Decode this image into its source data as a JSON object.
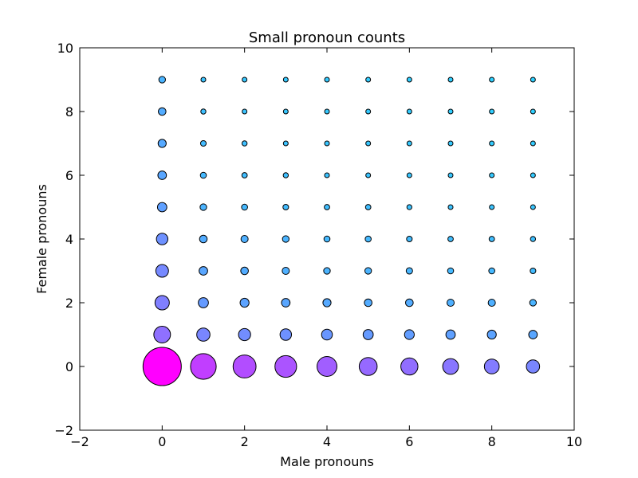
{
  "chart_data": {
    "type": "scatter",
    "title": "Small pronoun counts",
    "xlabel": "Male pronouns",
    "ylabel": "Female pronouns",
    "xlim": [
      -2,
      10
    ],
    "ylim": [
      -2,
      10
    ],
    "xticks": [
      -2,
      0,
      2,
      4,
      6,
      8,
      10
    ],
    "yticks": [
      -2,
      0,
      2,
      4,
      6,
      8,
      10
    ],
    "xtick_labels": [
      "−2",
      "0",
      "2",
      "4",
      "6",
      "8",
      "10"
    ],
    "ytick_labels": [
      "−2",
      "0",
      "2",
      "4",
      "6",
      "8",
      "10"
    ],
    "grid": false,
    "size_encoding": "relative count",
    "color_low": "#00ffff",
    "color_high": "#ff00ff",
    "points": [
      {
        "x": 0,
        "y": 0,
        "v": 1.0
      },
      {
        "x": 1,
        "y": 0,
        "v": 0.45
      },
      {
        "x": 2,
        "y": 0,
        "v": 0.36
      },
      {
        "x": 3,
        "y": 0,
        "v": 0.32
      },
      {
        "x": 4,
        "y": 0,
        "v": 0.27
      },
      {
        "x": 5,
        "y": 0,
        "v": 0.22
      },
      {
        "x": 6,
        "y": 0,
        "v": 0.2
      },
      {
        "x": 7,
        "y": 0,
        "v": 0.17
      },
      {
        "x": 8,
        "y": 0,
        "v": 0.15
      },
      {
        "x": 9,
        "y": 0,
        "v": 0.12
      },
      {
        "x": 0,
        "y": 1,
        "v": 0.19
      },
      {
        "x": 1,
        "y": 1,
        "v": 0.12
      },
      {
        "x": 2,
        "y": 1,
        "v": 0.1
      },
      {
        "x": 3,
        "y": 1,
        "v": 0.09
      },
      {
        "x": 4,
        "y": 1,
        "v": 0.08
      },
      {
        "x": 5,
        "y": 1,
        "v": 0.07
      },
      {
        "x": 6,
        "y": 1,
        "v": 0.065
      },
      {
        "x": 7,
        "y": 1,
        "v": 0.06
      },
      {
        "x": 8,
        "y": 1,
        "v": 0.055
      },
      {
        "x": 9,
        "y": 1,
        "v": 0.05
      },
      {
        "x": 0,
        "y": 2,
        "v": 0.14
      },
      {
        "x": 1,
        "y": 2,
        "v": 0.07
      },
      {
        "x": 2,
        "y": 2,
        "v": 0.055
      },
      {
        "x": 3,
        "y": 2,
        "v": 0.05
      },
      {
        "x": 4,
        "y": 2,
        "v": 0.045
      },
      {
        "x": 5,
        "y": 2,
        "v": 0.04
      },
      {
        "x": 6,
        "y": 2,
        "v": 0.04
      },
      {
        "x": 7,
        "y": 2,
        "v": 0.035
      },
      {
        "x": 8,
        "y": 2,
        "v": 0.035
      },
      {
        "x": 9,
        "y": 2,
        "v": 0.03
      },
      {
        "x": 0,
        "y": 3,
        "v": 0.11
      },
      {
        "x": 1,
        "y": 3,
        "v": 0.05
      },
      {
        "x": 2,
        "y": 3,
        "v": 0.04
      },
      {
        "x": 3,
        "y": 3,
        "v": 0.035
      },
      {
        "x": 4,
        "y": 3,
        "v": 0.03
      },
      {
        "x": 5,
        "y": 3,
        "v": 0.03
      },
      {
        "x": 6,
        "y": 3,
        "v": 0.028
      },
      {
        "x": 7,
        "y": 3,
        "v": 0.025
      },
      {
        "x": 8,
        "y": 3,
        "v": 0.025
      },
      {
        "x": 9,
        "y": 3,
        "v": 0.022
      },
      {
        "x": 0,
        "y": 4,
        "v": 0.09
      },
      {
        "x": 1,
        "y": 4,
        "v": 0.04
      },
      {
        "x": 2,
        "y": 4,
        "v": 0.035
      },
      {
        "x": 3,
        "y": 4,
        "v": 0.03
      },
      {
        "x": 4,
        "y": 4,
        "v": 0.025
      },
      {
        "x": 5,
        "y": 4,
        "v": 0.025
      },
      {
        "x": 6,
        "y": 4,
        "v": 0.022
      },
      {
        "x": 7,
        "y": 4,
        "v": 0.02
      },
      {
        "x": 8,
        "y": 4,
        "v": 0.02
      },
      {
        "x": 9,
        "y": 4,
        "v": 0.018
      },
      {
        "x": 0,
        "y": 5,
        "v": 0.06
      },
      {
        "x": 1,
        "y": 5,
        "v": 0.03
      },
      {
        "x": 2,
        "y": 5,
        "v": 0.025
      },
      {
        "x": 3,
        "y": 5,
        "v": 0.022
      },
      {
        "x": 4,
        "y": 5,
        "v": 0.02
      },
      {
        "x": 5,
        "y": 5,
        "v": 0.02
      },
      {
        "x": 6,
        "y": 5,
        "v": 0.017
      },
      {
        "x": 7,
        "y": 5,
        "v": 0.016
      },
      {
        "x": 8,
        "y": 5,
        "v": 0.015
      },
      {
        "x": 9,
        "y": 5,
        "v": 0.014
      },
      {
        "x": 0,
        "y": 6,
        "v": 0.05
      },
      {
        "x": 1,
        "y": 6,
        "v": 0.025
      },
      {
        "x": 2,
        "y": 6,
        "v": 0.02
      },
      {
        "x": 3,
        "y": 6,
        "v": 0.018
      },
      {
        "x": 4,
        "y": 6,
        "v": 0.016
      },
      {
        "x": 5,
        "y": 6,
        "v": 0.015
      },
      {
        "x": 6,
        "y": 6,
        "v": 0.014
      },
      {
        "x": 7,
        "y": 6,
        "v": 0.013
      },
      {
        "x": 8,
        "y": 6,
        "v": 0.012
      },
      {
        "x": 9,
        "y": 6,
        "v": 0.011
      },
      {
        "x": 0,
        "y": 7,
        "v": 0.045
      },
      {
        "x": 1,
        "y": 7,
        "v": 0.022
      },
      {
        "x": 2,
        "y": 7,
        "v": 0.018
      },
      {
        "x": 3,
        "y": 7,
        "v": 0.016
      },
      {
        "x": 4,
        "y": 7,
        "v": 0.014
      },
      {
        "x": 5,
        "y": 7,
        "v": 0.013
      },
      {
        "x": 6,
        "y": 7,
        "v": 0.012
      },
      {
        "x": 7,
        "y": 7,
        "v": 0.011
      },
      {
        "x": 8,
        "y": 7,
        "v": 0.01
      },
      {
        "x": 9,
        "y": 7,
        "v": 0.01
      },
      {
        "x": 0,
        "y": 8,
        "v": 0.04
      },
      {
        "x": 1,
        "y": 8,
        "v": 0.018
      },
      {
        "x": 2,
        "y": 8,
        "v": 0.015
      },
      {
        "x": 3,
        "y": 8,
        "v": 0.013
      },
      {
        "x": 4,
        "y": 8,
        "v": 0.012
      },
      {
        "x": 5,
        "y": 8,
        "v": 0.011
      },
      {
        "x": 6,
        "y": 8,
        "v": 0.01
      },
      {
        "x": 7,
        "y": 8,
        "v": 0.009
      },
      {
        "x": 8,
        "y": 8,
        "v": 0.009
      },
      {
        "x": 9,
        "y": 8,
        "v": 0.008
      },
      {
        "x": 0,
        "y": 9,
        "v": 0.03
      },
      {
        "x": 1,
        "y": 9,
        "v": 0.016
      },
      {
        "x": 2,
        "y": 9,
        "v": 0.013
      },
      {
        "x": 3,
        "y": 9,
        "v": 0.012
      },
      {
        "x": 4,
        "y": 9,
        "v": 0.011
      },
      {
        "x": 5,
        "y": 9,
        "v": 0.01
      },
      {
        "x": 6,
        "y": 9,
        "v": 0.009
      },
      {
        "x": 7,
        "y": 9,
        "v": 0.009
      },
      {
        "x": 8,
        "y": 9,
        "v": 0.008
      },
      {
        "x": 9,
        "y": 9,
        "v": 0.008
      }
    ]
  }
}
